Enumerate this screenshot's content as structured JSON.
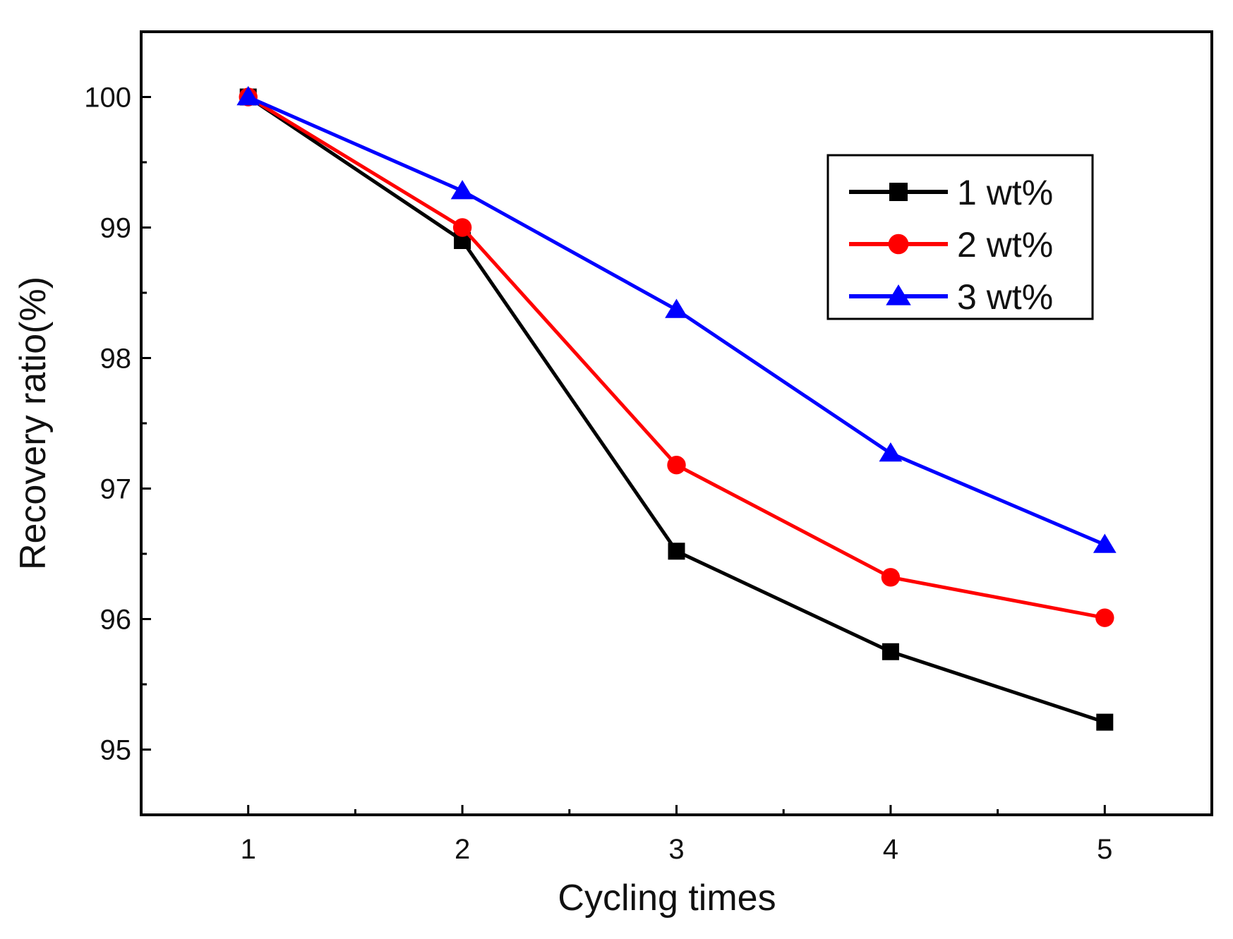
{
  "chart_data": {
    "type": "line",
    "title": "",
    "xlabel": "Cycling times",
    "ylabel": "Recovery ratio(%)",
    "x": [
      1,
      2,
      3,
      4,
      5
    ],
    "xlim": [
      0.5,
      5.5
    ],
    "ylim": [
      94.5,
      100.5
    ],
    "xticks": [
      "1",
      "2",
      "3",
      "4",
      "5"
    ],
    "yticks": [
      "95",
      "96",
      "97",
      "98",
      "99",
      "100"
    ],
    "grid": false,
    "legend_position": "top-right",
    "series": [
      {
        "name": "1 wt%",
        "color": "#000000",
        "marker": "square",
        "values": [
          100.0,
          98.9,
          96.52,
          95.75,
          95.21
        ]
      },
      {
        "name": "2 wt%",
        "color": "#ff0000",
        "marker": "circle",
        "values": [
          100.0,
          99.0,
          97.18,
          96.32,
          96.01
        ]
      },
      {
        "name": "3 wt%",
        "color": "#0000ff",
        "marker": "triangle",
        "values": [
          100.0,
          99.28,
          98.37,
          97.27,
          96.57
        ]
      }
    ]
  }
}
